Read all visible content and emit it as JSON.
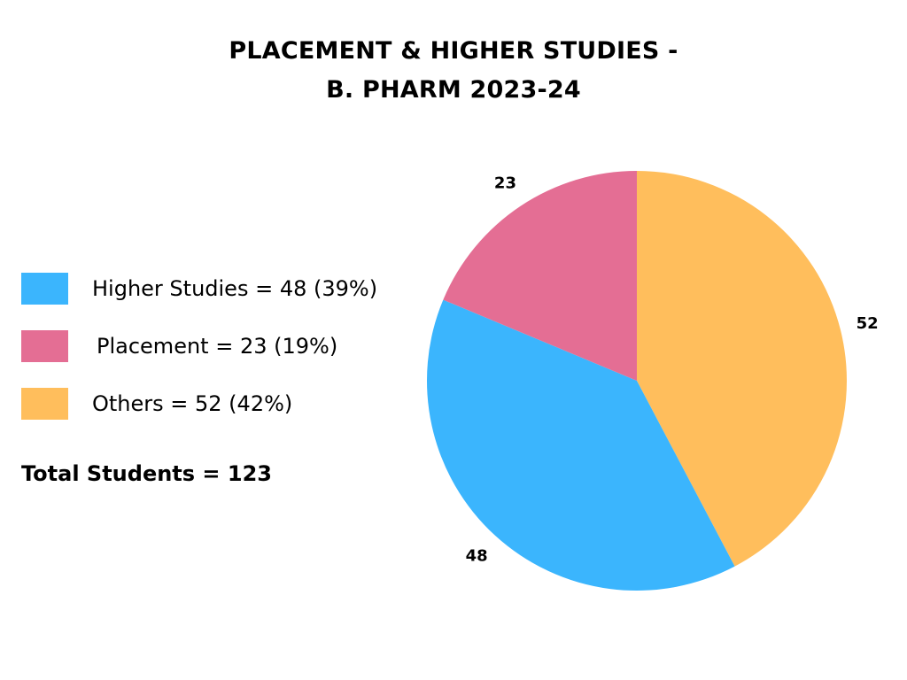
{
  "title_line1": "PLACEMENT & HIGHER STUDIES -",
  "title_line2": "B. PHARM 2023-24",
  "legend": [
    {
      "label": "Higher Studies = 48 (39%)",
      "color": "#3bb5fd"
    },
    {
      "label": "Placement = 23 (19%)",
      "color": "#e46e94"
    },
    {
      "label": "Others = 52 (42%)",
      "color": "#ffbe5c"
    }
  ],
  "total_text": "Total Students = 123",
  "chart_data": {
    "type": "pie",
    "title": "PLACEMENT & HIGHER STUDIES - B. PHARM 2023-24",
    "categories": [
      "Others",
      "Higher Studies",
      "Placement"
    ],
    "values": [
      52,
      48,
      23
    ],
    "colors": [
      "#ffbe5c",
      "#3bb5fd",
      "#e46e94"
    ],
    "data_labels": [
      "52",
      "48",
      "23"
    ],
    "start": "top, clockwise",
    "legend_placement": "left"
  }
}
